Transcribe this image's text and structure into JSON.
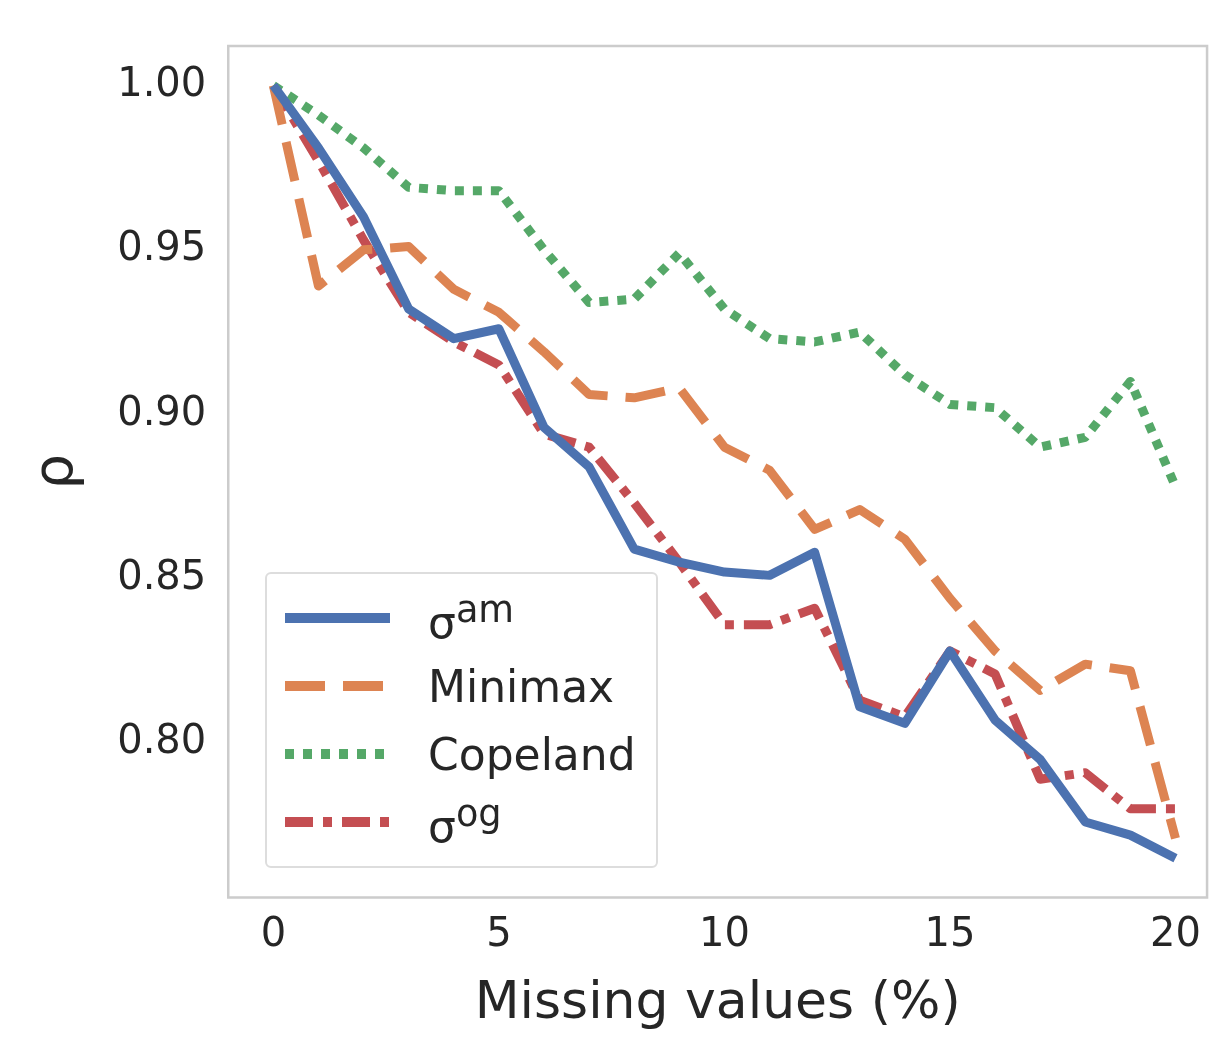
{
  "chart_data": {
    "type": "line",
    "xlabel": "Missing values (%)",
    "ylabel": "ρ",
    "x": [
      0,
      1,
      2,
      3,
      4,
      5,
      6,
      7,
      8,
      9,
      10,
      11,
      12,
      13,
      14,
      15,
      16,
      17,
      18,
      19,
      20
    ],
    "xlim": [
      -1,
      20.7
    ],
    "xticks": [
      0,
      5,
      10,
      15,
      20
    ],
    "ylim": [
      0.753,
      1.012
    ],
    "yticks": [
      {
        "value": 0.8,
        "label": "0.80"
      },
      {
        "value": 0.85,
        "label": "0.85"
      },
      {
        "value": 0.9,
        "label": "0.90"
      },
      {
        "value": 0.95,
        "label": "0.95"
      },
      {
        "value": 1.0,
        "label": "1.00"
      }
    ],
    "grid": false,
    "legend": "bottom left",
    "marker": "none",
    "series": [
      {
        "name": "σ$^{am}$",
        "color": "#4c72b0",
        "line_style": "solid",
        "values": [
          1.0,
          0.981,
          0.96,
          0.932,
          0.923,
          0.926,
          0.896,
          0.884,
          0.859,
          0.855,
          0.852,
          0.851,
          0.858,
          0.811,
          0.806,
          0.828,
          0.807,
          0.795,
          0.776,
          0.772,
          0.765
        ]
      },
      {
        "name": "Minimax",
        "color": "#dd8452",
        "line_style": "dashed",
        "values": [
          1.0,
          0.939,
          0.95,
          0.951,
          0.938,
          0.931,
          0.919,
          0.906,
          0.905,
          0.908,
          0.89,
          0.883,
          0.865,
          0.871,
          0.862,
          0.844,
          0.828,
          0.816,
          0.824,
          0.822,
          0.771
        ]
      },
      {
        "name": "Copeland",
        "color": "#55a868",
        "line_style": "dotted",
        "values": [
          1.0,
          0.991,
          0.981,
          0.969,
          0.968,
          0.968,
          0.95,
          0.934,
          0.935,
          0.949,
          0.932,
          0.923,
          0.922,
          0.925,
          0.912,
          0.903,
          0.902,
          0.89,
          0.893,
          0.91,
          0.878
        ]
      },
      {
        "name": "σ$^{og}$",
        "color": "#c44e52",
        "line_style": "dashdot",
        "values": [
          1.0,
          0.977,
          0.953,
          0.931,
          0.922,
          0.915,
          0.894,
          0.89,
          0.873,
          0.855,
          0.836,
          0.836,
          0.841,
          0.813,
          0.808,
          0.828,
          0.821,
          0.789,
          0.791,
          0.78,
          0.78
        ]
      }
    ]
  }
}
